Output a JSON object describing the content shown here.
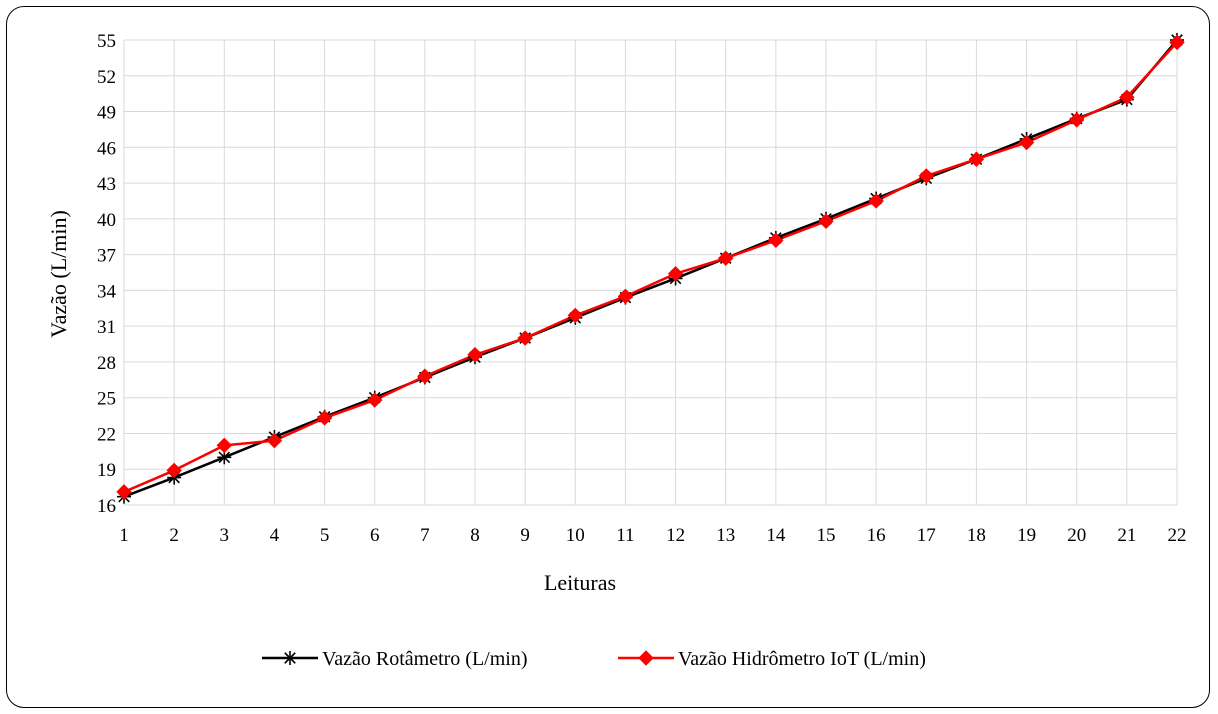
{
  "chart_data": {
    "type": "line",
    "title": "",
    "xlabel": "Leituras",
    "ylabel": "Vazão (L/min)",
    "x": [
      1,
      2,
      3,
      4,
      5,
      6,
      7,
      8,
      9,
      10,
      11,
      12,
      13,
      14,
      15,
      16,
      17,
      18,
      19,
      20,
      21,
      22
    ],
    "ylim": [
      16,
      55
    ],
    "yticks": [
      16,
      19,
      22,
      25,
      28,
      31,
      34,
      37,
      40,
      43,
      46,
      49,
      52,
      55
    ],
    "grid": true,
    "legend_position": "bottom",
    "series": [
      {
        "name": "Vazão Rotâmetro (L/min)",
        "color": "#000000",
        "marker": "asterisk",
        "values": [
          16.7,
          18.3,
          20.0,
          21.7,
          23.4,
          25.0,
          26.7,
          28.4,
          30.0,
          31.7,
          33.4,
          35.0,
          36.7,
          38.4,
          40.0,
          41.7,
          43.4,
          45.0,
          46.7,
          48.4,
          50.0,
          55.0
        ]
      },
      {
        "name": "Vazão Hidrômetro IoT (L/min)",
        "color": "#ff0000",
        "marker": "diamond",
        "values": [
          17.1,
          18.9,
          21.0,
          21.4,
          23.3,
          24.8,
          26.8,
          28.6,
          30.0,
          31.9,
          33.5,
          35.4,
          36.7,
          38.2,
          39.8,
          41.5,
          43.6,
          45.0,
          46.4,
          48.3,
          50.2,
          54.8
        ]
      }
    ]
  }
}
